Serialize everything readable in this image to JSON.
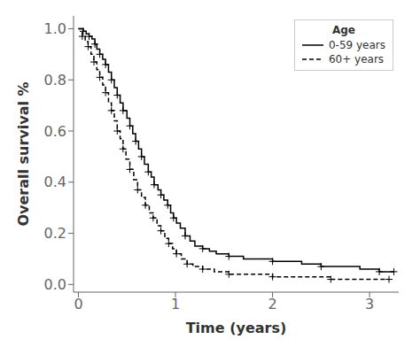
{
  "chart_data": {
    "type": "step",
    "xlabel": "Time (years)",
    "ylabel": "Overall survival %",
    "xlim": [
      -0.05,
      3.3
    ],
    "ylim": [
      -0.03,
      1.05
    ],
    "xticks": [
      0,
      1,
      2,
      3
    ],
    "yticks": [
      {
        "value": 0.0,
        "label": "0.0"
      },
      0.2,
      0.4,
      0.6,
      0.8,
      {
        "value": 1.0,
        "label": "1.0"
      }
    ],
    "grid": false,
    "legend": "upper right",
    "legend_title": "Age",
    "series": [
      {
        "name": "0-59 years",
        "color": "#000000",
        "line_style": "solid",
        "marker": "+",
        "x": [
          0.0,
          0.05,
          0.08,
          0.11,
          0.14,
          0.17,
          0.19,
          0.22,
          0.25,
          0.28,
          0.31,
          0.34,
          0.37,
          0.4,
          0.43,
          0.46,
          0.5,
          0.53,
          0.56,
          0.59,
          0.62,
          0.65,
          0.68,
          0.72,
          0.75,
          0.78,
          0.82,
          0.85,
          0.88,
          0.92,
          0.95,
          0.98,
          1.01,
          1.05,
          1.1,
          1.15,
          1.2,
          1.28,
          1.35,
          1.42,
          1.55,
          1.7,
          1.85,
          2.0,
          2.15,
          2.3,
          2.5,
          2.7,
          2.9,
          3.1,
          3.25
        ],
        "values": [
          1.0,
          0.99,
          0.98,
          0.97,
          0.96,
          0.94,
          0.92,
          0.9,
          0.88,
          0.86,
          0.83,
          0.8,
          0.77,
          0.74,
          0.71,
          0.68,
          0.65,
          0.62,
          0.59,
          0.56,
          0.53,
          0.5,
          0.47,
          0.44,
          0.42,
          0.39,
          0.37,
          0.35,
          0.33,
          0.31,
          0.28,
          0.26,
          0.24,
          0.22,
          0.19,
          0.17,
          0.15,
          0.14,
          0.13,
          0.12,
          0.11,
          0.1,
          0.1,
          0.09,
          0.09,
          0.08,
          0.07,
          0.07,
          0.06,
          0.05,
          0.05
        ],
        "censor_x": [
          0.05,
          0.11,
          0.17,
          0.22,
          0.28,
          0.34,
          0.4,
          0.46,
          0.53,
          0.59,
          0.65,
          0.72,
          0.78,
          0.85,
          0.92,
          0.98,
          1.1,
          1.28,
          1.55,
          2.0,
          2.5,
          3.1,
          3.25
        ],
        "censor_values": [
          0.99,
          0.97,
          0.94,
          0.9,
          0.86,
          0.8,
          0.74,
          0.68,
          0.62,
          0.56,
          0.5,
          0.44,
          0.39,
          0.35,
          0.31,
          0.26,
          0.19,
          0.14,
          0.11,
          0.09,
          0.07,
          0.05,
          0.05
        ]
      },
      {
        "name": "60+ years",
        "color": "#000000",
        "line_style": "dashed",
        "marker": "+",
        "x": [
          0.0,
          0.04,
          0.07,
          0.1,
          0.13,
          0.16,
          0.19,
          0.22,
          0.25,
          0.28,
          0.31,
          0.34,
          0.37,
          0.4,
          0.43,
          0.46,
          0.49,
          0.53,
          0.57,
          0.61,
          0.65,
          0.69,
          0.73,
          0.77,
          0.81,
          0.85,
          0.89,
          0.93,
          0.97,
          1.01,
          1.06,
          1.12,
          1.18,
          1.28,
          1.4,
          1.55,
          1.75,
          2.0,
          2.3,
          2.6,
          2.9,
          3.2
        ],
        "values": [
          1.0,
          0.97,
          0.95,
          0.93,
          0.9,
          0.87,
          0.84,
          0.81,
          0.78,
          0.75,
          0.71,
          0.68,
          0.64,
          0.6,
          0.57,
          0.53,
          0.49,
          0.45,
          0.41,
          0.37,
          0.34,
          0.31,
          0.28,
          0.26,
          0.23,
          0.21,
          0.18,
          0.16,
          0.14,
          0.12,
          0.1,
          0.08,
          0.07,
          0.06,
          0.05,
          0.04,
          0.04,
          0.03,
          0.03,
          0.02,
          0.02,
          0.02
        ],
        "censor_x": [
          0.04,
          0.1,
          0.16,
          0.22,
          0.28,
          0.34,
          0.4,
          0.46,
          0.53,
          0.61,
          0.69,
          0.77,
          0.85,
          0.93,
          1.01,
          1.12,
          1.28,
          1.55,
          2.0,
          2.6,
          3.2
        ],
        "censor_values": [
          0.97,
          0.93,
          0.87,
          0.81,
          0.75,
          0.68,
          0.6,
          0.53,
          0.45,
          0.37,
          0.31,
          0.26,
          0.21,
          0.16,
          0.12,
          0.08,
          0.06,
          0.04,
          0.03,
          0.02,
          0.02
        ]
      }
    ]
  }
}
